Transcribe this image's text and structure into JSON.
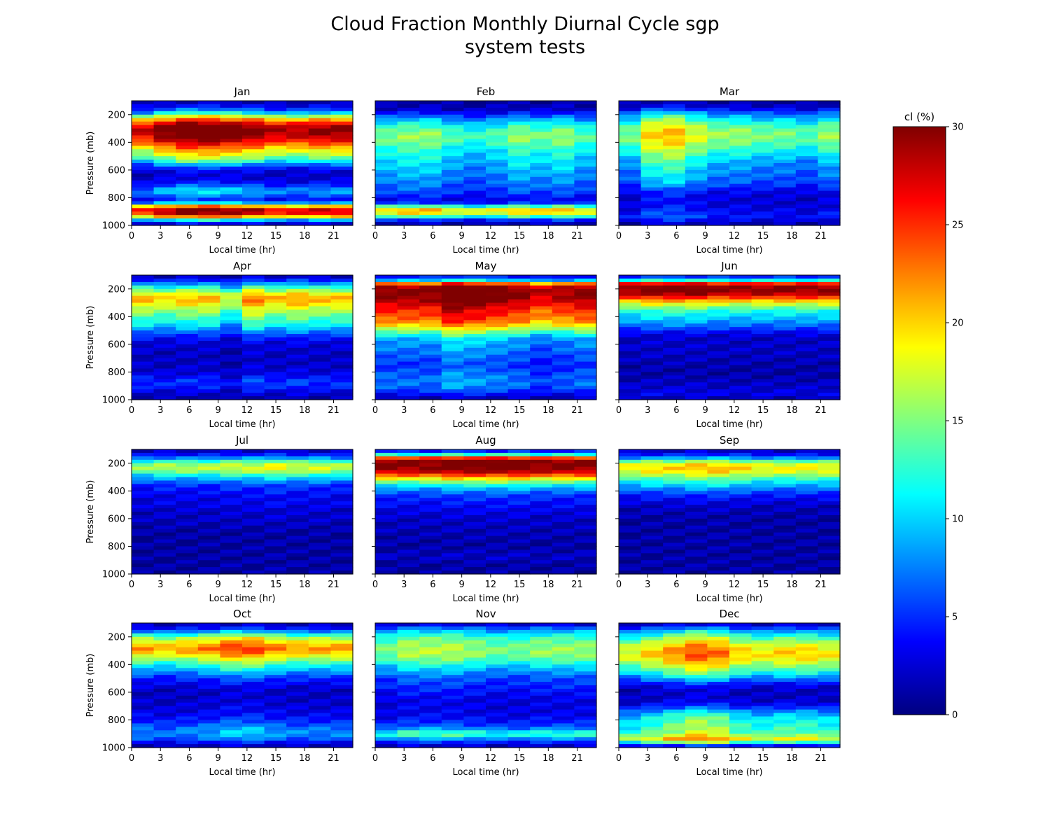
{
  "figure": {
    "title_line1": "Cloud Fraction Monthly Diurnal Cycle sgp",
    "title_line2": "system tests"
  },
  "chart_data": {
    "type": "heatmap",
    "layout": "4x3 small multiples",
    "panels": [
      "Jan",
      "Feb",
      "Mar",
      "Apr",
      "May",
      "Jun",
      "Jul",
      "Aug",
      "Sep",
      "Oct",
      "Nov",
      "Dec"
    ],
    "xlabel": "Local time (hr)",
    "ylabel": "Pressure (mb)",
    "xticks": [
      0,
      3,
      6,
      9,
      12,
      15,
      18,
      21
    ],
    "yticks": [
      200,
      400,
      600,
      800,
      1000
    ],
    "xlim": [
      0,
      23
    ],
    "ylim": [
      1000,
      100
    ],
    "time_bins": [
      0,
      2.3,
      4.6,
      6.9,
      9.2,
      11.5,
      13.8,
      16.1,
      18.4,
      20.7,
      23
    ],
    "pressure_levels": [
      100,
      125,
      150,
      175,
      200,
      225,
      250,
      275,
      300,
      325,
      350,
      375,
      400,
      425,
      450,
      475,
      500,
      525,
      550,
      575,
      600,
      625,
      650,
      675,
      700,
      725,
      750,
      775,
      800,
      825,
      850,
      875,
      900,
      925,
      950,
      975,
      1000
    ],
    "colormap": "jet",
    "colorbar": {
      "label": "cl (%)",
      "range": [
        0,
        30
      ],
      "ticks": [
        0,
        5,
        10,
        15,
        20,
        25,
        30
      ],
      "placement": "right"
    },
    "profiles": {
      "Jan": [
        [
          100,
          1
        ],
        [
          150,
          4
        ],
        [
          180,
          8
        ],
        [
          200,
          13
        ],
        [
          225,
          19
        ],
        [
          250,
          24
        ],
        [
          270,
          27
        ],
        [
          290,
          29
        ],
        [
          320,
          30
        ],
        [
          350,
          29
        ],
        [
          380,
          27
        ],
        [
          410,
          24
        ],
        [
          440,
          21
        ],
        [
          470,
          18
        ],
        [
          500,
          16
        ],
        [
          540,
          11
        ],
        [
          570,
          6
        ],
        [
          600,
          3
        ],
        [
          650,
          2
        ],
        [
          700,
          4
        ],
        [
          750,
          9
        ],
        [
          780,
          7
        ],
        [
          810,
          4
        ],
        [
          840,
          9
        ],
        [
          860,
          19
        ],
        [
          880,
          27
        ],
        [
          900,
          28
        ],
        [
          920,
          26
        ],
        [
          940,
          19
        ],
        [
          960,
          10
        ],
        [
          980,
          4
        ],
        [
          1000,
          1
        ]
      ],
      "Feb": [
        [
          100,
          1
        ],
        [
          160,
          2
        ],
        [
          200,
          5
        ],
        [
          250,
          10
        ],
        [
          300,
          13
        ],
        [
          350,
          15
        ],
        [
          400,
          14
        ],
        [
          450,
          12
        ],
        [
          500,
          11
        ],
        [
          550,
          10
        ],
        [
          600,
          9
        ],
        [
          650,
          8
        ],
        [
          700,
          7
        ],
        [
          750,
          6
        ],
        [
          800,
          4
        ],
        [
          830,
          3
        ],
        [
          850,
          8
        ],
        [
          870,
          16
        ],
        [
          890,
          20
        ],
        [
          910,
          19
        ],
        [
          930,
          15
        ],
        [
          950,
          8
        ],
        [
          970,
          3
        ],
        [
          1000,
          1
        ]
      ],
      "Mar": [
        [
          100,
          1
        ],
        [
          150,
          3
        ],
        [
          200,
          9
        ],
        [
          250,
          13
        ],
        [
          300,
          16
        ],
        [
          350,
          17
        ],
        [
          400,
          16
        ],
        [
          450,
          14
        ],
        [
          500,
          12
        ],
        [
          550,
          10
        ],
        [
          600,
          9
        ],
        [
          650,
          8
        ],
        [
          700,
          7
        ],
        [
          750,
          4
        ],
        [
          800,
          3
        ],
        [
          850,
          3
        ],
        [
          900,
          4
        ],
        [
          940,
          5
        ],
        [
          970,
          3
        ],
        [
          1000,
          1
        ]
      ],
      "Apr": [
        [
          100,
          1
        ],
        [
          150,
          6
        ],
        [
          200,
          14
        ],
        [
          240,
          19
        ],
        [
          270,
          21
        ],
        [
          300,
          20
        ],
        [
          340,
          17
        ],
        [
          380,
          15
        ],
        [
          420,
          13
        ],
        [
          460,
          11
        ],
        [
          500,
          8
        ],
        [
          540,
          5
        ],
        [
          580,
          3
        ],
        [
          650,
          2
        ],
        [
          750,
          2
        ],
        [
          820,
          3
        ],
        [
          860,
          5
        ],
        [
          900,
          5
        ],
        [
          940,
          3
        ],
        [
          1000,
          1
        ]
      ],
      "May": [
        [
          100,
          2
        ],
        [
          140,
          10
        ],
        [
          160,
          22
        ],
        [
          180,
          28
        ],
        [
          200,
          30
        ],
        [
          240,
          30
        ],
        [
          280,
          29
        ],
        [
          320,
          27
        ],
        [
          360,
          25
        ],
        [
          400,
          24
        ],
        [
          440,
          22
        ],
        [
          480,
          18
        ],
        [
          520,
          13
        ],
        [
          560,
          9
        ],
        [
          600,
          8
        ],
        [
          650,
          7
        ],
        [
          700,
          6
        ],
        [
          750,
          5
        ],
        [
          800,
          6
        ],
        [
          850,
          7
        ],
        [
          900,
          7
        ],
        [
          940,
          5
        ],
        [
          970,
          3
        ],
        [
          1000,
          1
        ]
      ],
      "Jun": [
        [
          100,
          2
        ],
        [
          140,
          12
        ],
        [
          160,
          25
        ],
        [
          180,
          29
        ],
        [
          200,
          30
        ],
        [
          230,
          29
        ],
        [
          260,
          25
        ],
        [
          290,
          20
        ],
        [
          320,
          16
        ],
        [
          360,
          12
        ],
        [
          400,
          10
        ],
        [
          440,
          8
        ],
        [
          480,
          6
        ],
        [
          520,
          3
        ],
        [
          560,
          2
        ],
        [
          650,
          2
        ],
        [
          800,
          1
        ],
        [
          900,
          2
        ],
        [
          960,
          3
        ],
        [
          1000,
          1
        ]
      ],
      "Jul": [
        [
          100,
          1
        ],
        [
          150,
          5
        ],
        [
          180,
          11
        ],
        [
          200,
          15
        ],
        [
          230,
          17
        ],
        [
          260,
          15
        ],
        [
          290,
          11
        ],
        [
          320,
          8
        ],
        [
          360,
          5
        ],
        [
          400,
          4
        ],
        [
          450,
          3
        ],
        [
          500,
          3
        ],
        [
          550,
          2
        ],
        [
          600,
          2
        ],
        [
          700,
          1
        ],
        [
          850,
          1
        ],
        [
          1000,
          1
        ]
      ],
      "Aug": [
        [
          100,
          2
        ],
        [
          130,
          8
        ],
        [
          150,
          18
        ],
        [
          170,
          28
        ],
        [
          190,
          30
        ],
        [
          230,
          30
        ],
        [
          260,
          28
        ],
        [
          290,
          23
        ],
        [
          320,
          17
        ],
        [
          360,
          11
        ],
        [
          400,
          7
        ],
        [
          440,
          5
        ],
        [
          480,
          4
        ],
        [
          540,
          3
        ],
        [
          600,
          2
        ],
        [
          800,
          1
        ],
        [
          880,
          2
        ],
        [
          930,
          1
        ],
        [
          1000,
          1
        ]
      ],
      "Sep": [
        [
          100,
          1
        ],
        [
          150,
          5
        ],
        [
          180,
          12
        ],
        [
          200,
          17
        ],
        [
          230,
          19
        ],
        [
          260,
          18
        ],
        [
          290,
          15
        ],
        [
          320,
          12
        ],
        [
          360,
          9
        ],
        [
          400,
          6
        ],
        [
          440,
          4
        ],
        [
          500,
          2
        ],
        [
          600,
          1
        ],
        [
          800,
          1
        ],
        [
          1000,
          1
        ]
      ],
      "Oct": [
        [
          100,
          1
        ],
        [
          150,
          5
        ],
        [
          180,
          11
        ],
        [
          210,
          16
        ],
        [
          250,
          20
        ],
        [
          290,
          22
        ],
        [
          320,
          20
        ],
        [
          360,
          16
        ],
        [
          400,
          12
        ],
        [
          440,
          9
        ],
        [
          480,
          6
        ],
        [
          520,
          4
        ],
        [
          580,
          2
        ],
        [
          650,
          2
        ],
        [
          750,
          3
        ],
        [
          820,
          5
        ],
        [
          860,
          7
        ],
        [
          900,
          8
        ],
        [
          940,
          6
        ],
        [
          970,
          3
        ],
        [
          1000,
          1
        ]
      ],
      "Nov": [
        [
          100,
          1
        ],
        [
          140,
          7
        ],
        [
          180,
          11
        ],
        [
          220,
          14
        ],
        [
          260,
          15
        ],
        [
          300,
          16
        ],
        [
          340,
          15
        ],
        [
          380,
          13
        ],
        [
          420,
          10
        ],
        [
          460,
          8
        ],
        [
          500,
          6
        ],
        [
          550,
          5
        ],
        [
          600,
          4
        ],
        [
          650,
          3
        ],
        [
          700,
          3
        ],
        [
          750,
          3
        ],
        [
          800,
          4
        ],
        [
          850,
          6
        ],
        [
          880,
          10
        ],
        [
          900,
          14
        ],
        [
          920,
          11
        ],
        [
          950,
          6
        ],
        [
          980,
          3
        ],
        [
          1000,
          1
        ]
      ],
      "Dec": [
        [
          100,
          1
        ],
        [
          140,
          6
        ],
        [
          180,
          11
        ],
        [
          220,
          15
        ],
        [
          260,
          18
        ],
        [
          300,
          20
        ],
        [
          340,
          20
        ],
        [
          380,
          18
        ],
        [
          420,
          15
        ],
        [
          460,
          12
        ],
        [
          500,
          8
        ],
        [
          540,
          4
        ],
        [
          580,
          2
        ],
        [
          650,
          2
        ],
        [
          700,
          4
        ],
        [
          740,
          8
        ],
        [
          780,
          11
        ],
        [
          820,
          12
        ],
        [
          860,
          13
        ],
        [
          900,
          14
        ],
        [
          920,
          17
        ],
        [
          940,
          19
        ],
        [
          960,
          14
        ],
        [
          980,
          6
        ],
        [
          1000,
          1
        ]
      ]
    },
    "diurnal_modulation": {
      "Jan": [
        -2,
        1,
        3,
        3,
        2,
        1,
        -1,
        -1,
        0,
        0
      ],
      "Feb": [
        0,
        1,
        1,
        -1,
        -2,
        -1,
        1,
        0,
        1,
        -1
      ],
      "Mar": [
        -2,
        3,
        4,
        1,
        -1,
        -1,
        -2,
        -2,
        -3,
        -1
      ],
      "Apr": [
        0,
        -1,
        0,
        0,
        -3,
        2,
        0,
        1,
        0,
        0
      ],
      "May": [
        0,
        0,
        0,
        3,
        2,
        1,
        0,
        -2,
        -1,
        0
      ],
      "Jun": [
        0,
        1,
        1,
        1,
        0,
        0,
        0,
        0,
        0,
        0
      ],
      "Jul": [
        -1,
        0,
        0,
        0,
        1,
        1,
        2,
        1,
        1,
        0
      ],
      "Aug": [
        0,
        0,
        0,
        1,
        1,
        1,
        1,
        0,
        0,
        0
      ],
      "Sep": [
        0,
        1,
        1,
        2,
        2,
        1,
        0,
        0,
        0,
        0
      ],
      "Oct": [
        0,
        -1,
        0,
        1,
        3,
        3,
        1,
        0,
        0,
        0
      ],
      "Nov": [
        -1,
        1,
        1,
        1,
        0,
        -1,
        -1,
        0,
        0,
        0
      ],
      "Dec": [
        -2,
        0,
        2,
        4,
        3,
        0,
        -1,
        0,
        0,
        -1
      ]
    }
  }
}
